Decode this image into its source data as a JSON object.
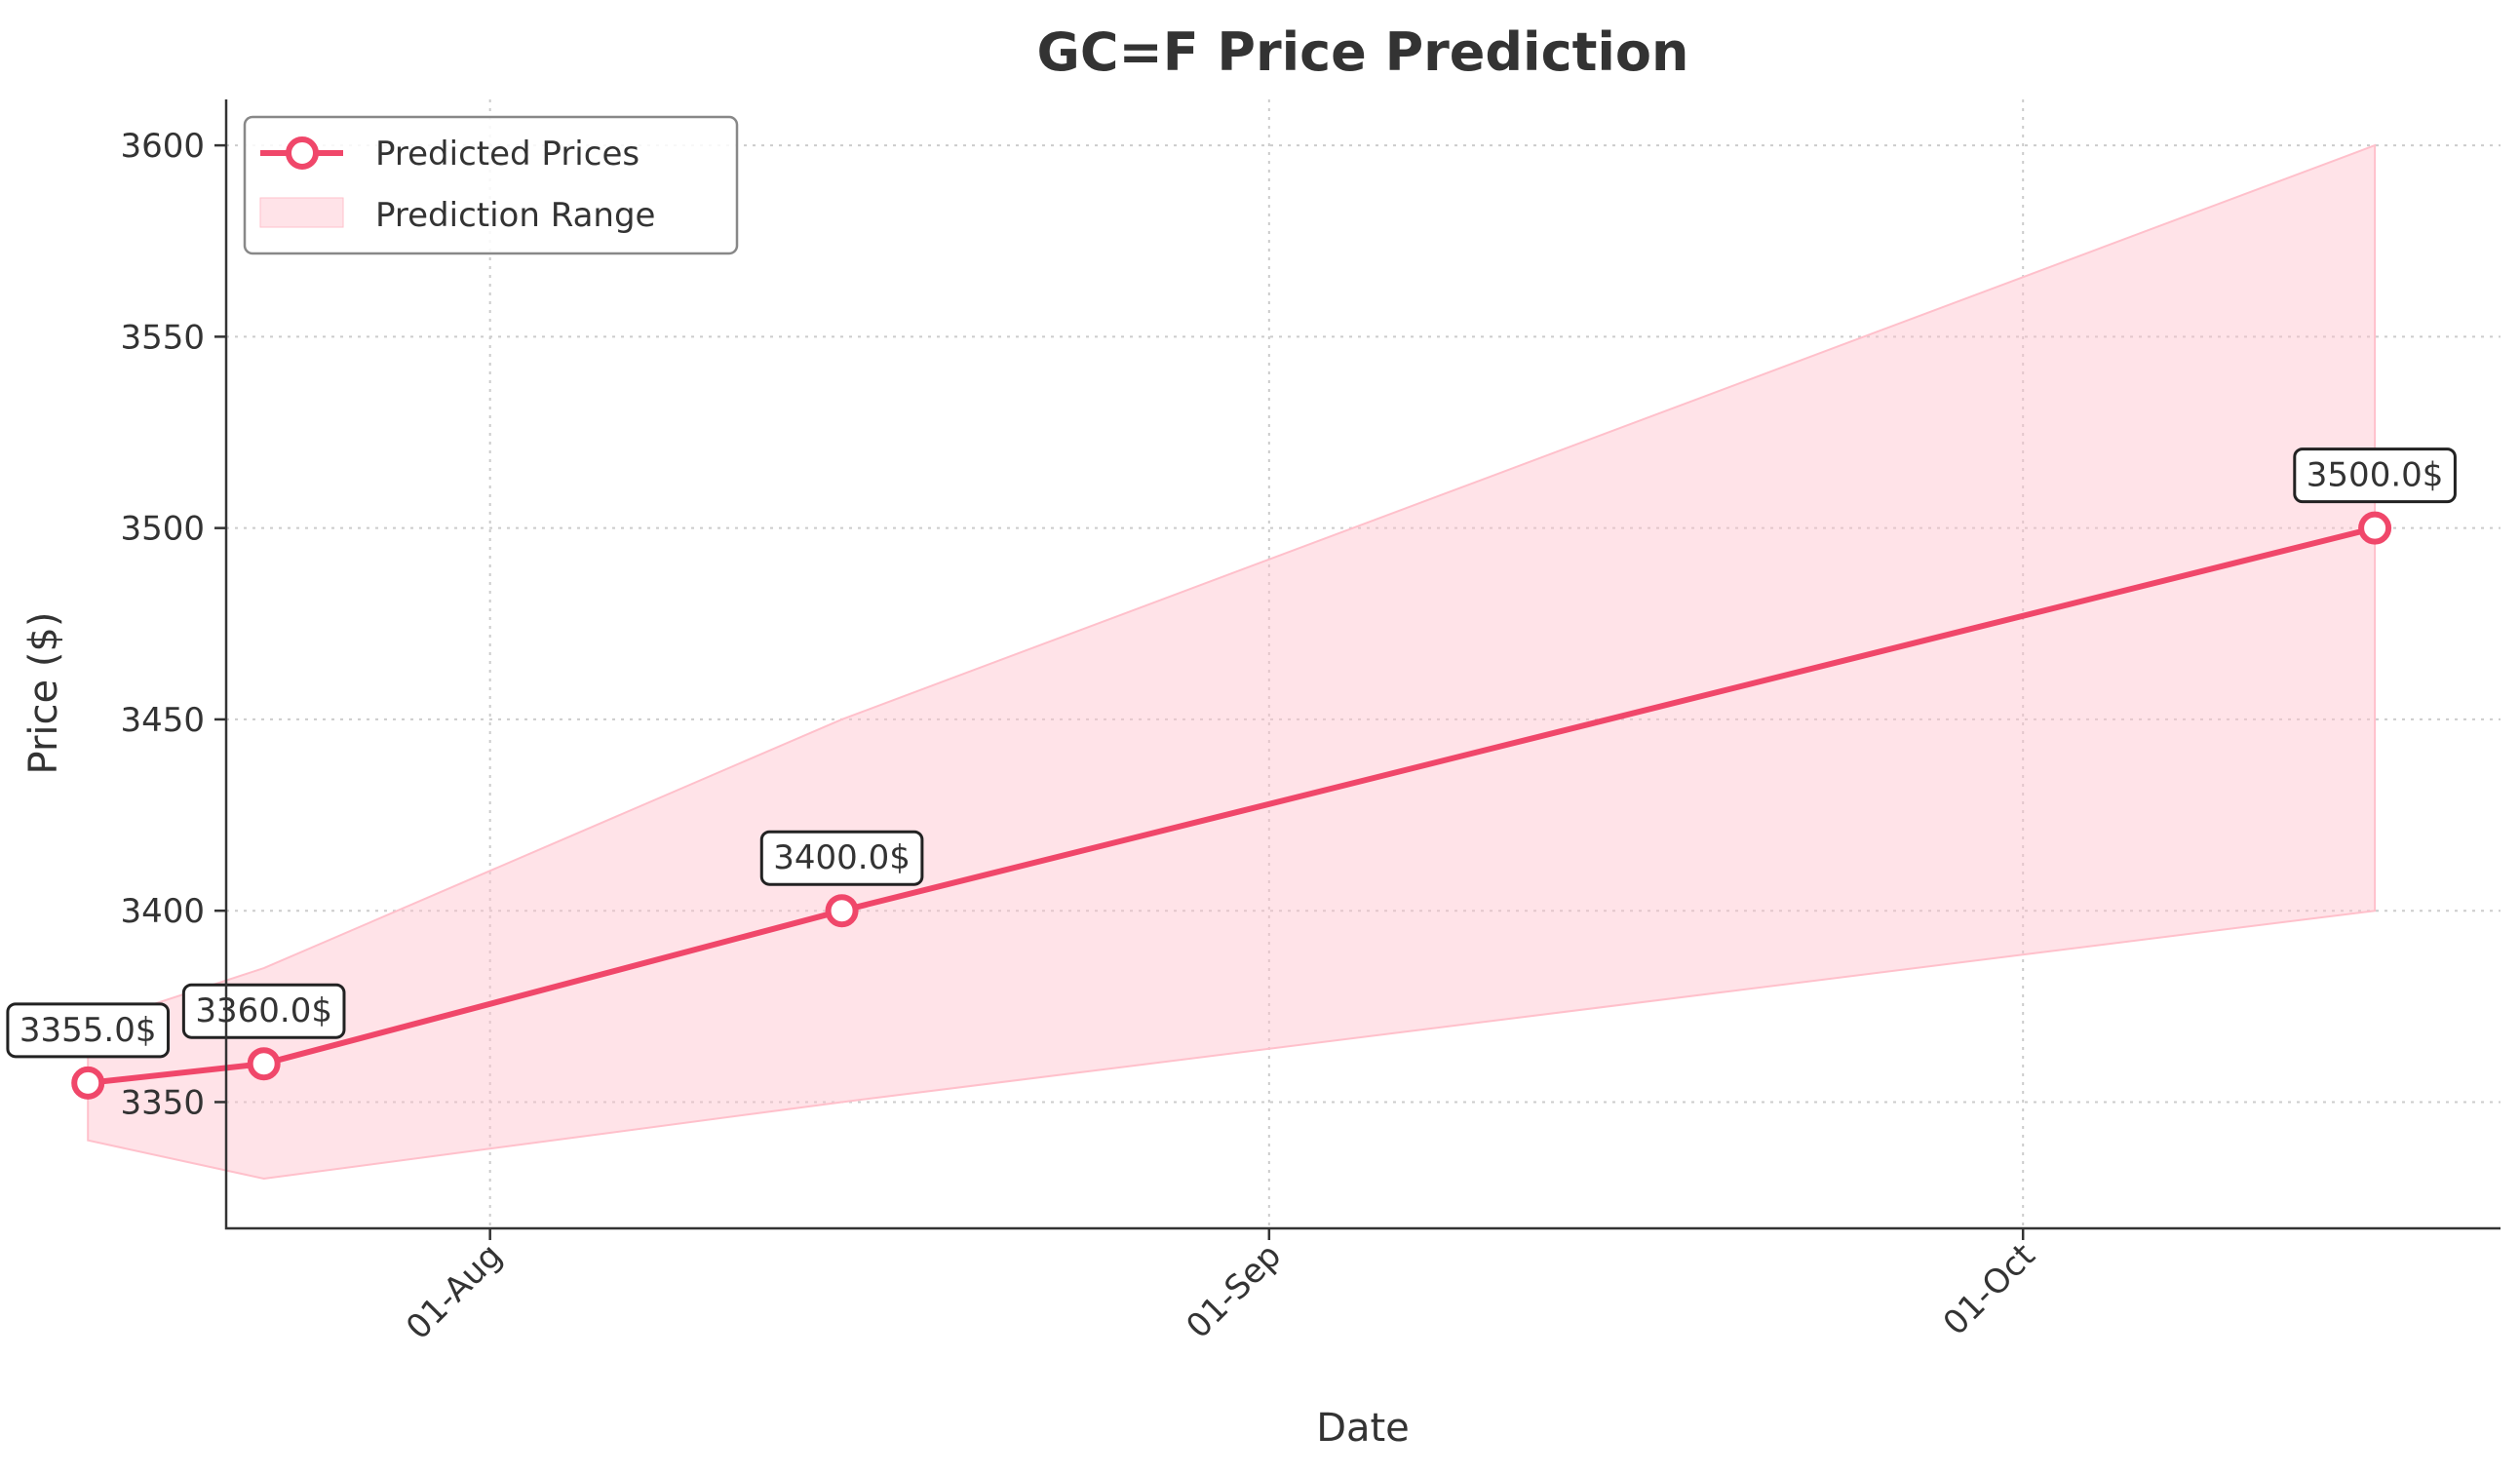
{
  "chart_data": {
    "type": "line",
    "title": "GC=F Price Prediction",
    "xlabel": "Date",
    "ylabel": "Price ($)",
    "x_ticks": [
      {
        "label": "01-Aug",
        "day": 31
      },
      {
        "label": "01-Sep",
        "day": 62
      },
      {
        "label": "01-Oct",
        "day": 92
      }
    ],
    "xlim": [
      20.5,
      111
    ],
    "ylim": [
      3317,
      3612
    ],
    "y_ticks": [
      3350,
      3400,
      3450,
      3500,
      3550,
      3600
    ],
    "y_tick_labels": [
      "3350",
      "3400",
      "3450",
      "3500",
      "3550",
      "3600"
    ],
    "grid": true,
    "legend_position": "upper-left",
    "series": [
      {
        "name": "Predicted Prices",
        "color": "#f0476a",
        "points": [
          {
            "day": 15,
            "value": 3355.0,
            "label": "3355.0$"
          },
          {
            "day": 22,
            "value": 3360.0,
            "label": "3360.0$"
          },
          {
            "day": 45,
            "value": 3400.0,
            "label": "3400.0$"
          },
          {
            "day": 106,
            "value": 3500.0,
            "label": "3500.0$"
          }
        ]
      }
    ],
    "range": {
      "name": "Prediction Range",
      "color": "#ffc0cb",
      "points": [
        {
          "day": 15,
          "lower": 3340,
          "upper": 3370
        },
        {
          "day": 22,
          "lower": 3330,
          "upper": 3385
        },
        {
          "day": 45,
          "lower": 3350,
          "upper": 3450
        },
        {
          "day": 106,
          "lower": 3400,
          "upper": 3600
        }
      ]
    }
  }
}
